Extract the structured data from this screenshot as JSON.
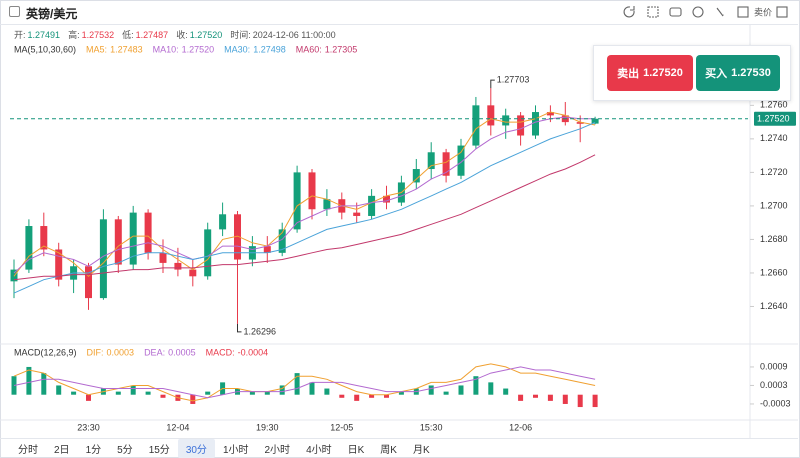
{
  "header": {
    "title": "英镑/美元",
    "tool_text": "卖价",
    "fields": [
      {
        "label": "开:",
        "value": "1.27491",
        "color": "#14937a"
      },
      {
        "label": "高:",
        "value": "1.27532",
        "color": "#e8394a"
      },
      {
        "label": "低:",
        "value": "1.27487",
        "color": "#e8394a"
      },
      {
        "label": "收:",
        "value": "1.27520",
        "color": "#14937a"
      },
      {
        "label": "时间:",
        "value": "2024-12-06 11:00:00",
        "color": "#555555"
      }
    ]
  },
  "trade": {
    "sell": {
      "label": "卖出",
      "price": "1.27520"
    },
    "buy": {
      "label": "买入",
      "price": "1.27530"
    }
  },
  "tabs": [
    "分时",
    "2日",
    "1分",
    "5分",
    "15分",
    "30分",
    "1小时",
    "2小时",
    "4小时",
    "日K",
    "周K",
    "月K"
  ],
  "active_tab": 5,
  "chart_data": [
    {
      "type": "candlestick",
      "legend_title": "MA(5,10,30,60)",
      "categories": [
        null,
        null,
        null,
        null,
        null,
        "23:30",
        null,
        null,
        null,
        null,
        null,
        "12-04",
        null,
        null,
        null,
        null,
        null,
        "19:30",
        null,
        null,
        null,
        null,
        "12-05",
        null,
        null,
        null,
        null,
        null,
        "15:30",
        null,
        null,
        null,
        null,
        null,
        "12-06",
        null,
        null,
        null,
        null,
        null
      ],
      "open": [
        1.2655,
        1.2662,
        1.2688,
        1.2674,
        1.2656,
        1.2664,
        1.2645,
        1.2692,
        1.2665,
        1.2696,
        1.2672,
        1.2666,
        1.2662,
        1.2658,
        1.2686,
        1.2695,
        1.2668,
        1.2676,
        1.2672,
        1.2686,
        1.272,
        1.2698,
        1.2704,
        1.2696,
        1.2694,
        1.2706,
        1.2702,
        1.2714,
        1.2722,
        1.2732,
        1.2718,
        1.2736,
        1.276,
        1.2748,
        1.2754,
        1.2742,
        1.2756,
        1.2754,
        1.275,
        1.27491
      ],
      "high": [
        1.2668,
        1.2692,
        1.2696,
        1.2678,
        1.2668,
        1.2666,
        1.2698,
        1.2694,
        1.27,
        1.2698,
        1.268,
        1.2675,
        1.2668,
        1.269,
        1.2702,
        1.2697,
        1.2682,
        1.2682,
        1.269,
        1.2724,
        1.2722,
        1.271,
        1.2708,
        1.2702,
        1.271,
        1.2712,
        1.2718,
        1.2728,
        1.2738,
        1.2734,
        1.274,
        1.2765,
        1.27703,
        1.2758,
        1.2756,
        1.276,
        1.276,
        1.2762,
        1.2754,
        1.27532
      ],
      "low": [
        1.2645,
        1.266,
        1.267,
        1.2652,
        1.2648,
        1.2638,
        1.2644,
        1.266,
        1.2662,
        1.2668,
        1.266,
        1.2658,
        1.2652,
        1.2656,
        1.2682,
        1.26296,
        1.2664,
        1.2666,
        1.267,
        1.2684,
        1.2692,
        1.2694,
        1.2692,
        1.269,
        1.2692,
        1.2698,
        1.27,
        1.271,
        1.2716,
        1.2714,
        1.2716,
        1.2734,
        1.2742,
        1.274,
        1.2736,
        1.274,
        1.275,
        1.2748,
        1.2738,
        1.27487
      ],
      "close": [
        1.2662,
        1.2688,
        1.2674,
        1.2656,
        1.2664,
        1.2645,
        1.2692,
        1.2665,
        1.2696,
        1.2672,
        1.2666,
        1.2662,
        1.2658,
        1.2686,
        1.2695,
        1.2668,
        1.2676,
        1.2672,
        1.2686,
        1.272,
        1.2698,
        1.2704,
        1.2696,
        1.2694,
        1.2706,
        1.2702,
        1.2714,
        1.2722,
        1.2732,
        1.2718,
        1.2736,
        1.276,
        1.2748,
        1.2754,
        1.2742,
        1.2756,
        1.2754,
        1.275,
        1.2749,
        1.2752
      ],
      "up_color": "#14a07a",
      "down_color": "#e8394a",
      "series": [
        {
          "name": "MA5:",
          "color": "#f0a030",
          "value_label": "1.27483",
          "values": [
            1.2658,
            1.267,
            1.2676,
            1.2672,
            1.2666,
            1.2658,
            1.2666,
            1.2676,
            1.2682,
            1.2682,
            1.2674,
            1.2668,
            1.2662,
            1.2668,
            1.268,
            1.2682,
            1.2678,
            1.2676,
            1.2684,
            1.27,
            1.2706,
            1.2704,
            1.27,
            1.2698,
            1.2702,
            1.2706,
            1.2708,
            1.2716,
            1.2724,
            1.2726,
            1.2732,
            1.2746,
            1.2752,
            1.275,
            1.275,
            1.2752,
            1.2756,
            1.2754,
            1.275,
            1.27483
          ]
        },
        {
          "name": "MA10:",
          "color": "#b36ad0",
          "value_label": "1.27520",
          "values": [
            1.266,
            1.2668,
            1.2672,
            1.267,
            1.2668,
            1.2664,
            1.267,
            1.2674,
            1.2676,
            1.2678,
            1.2676,
            1.2672,
            1.2668,
            1.267,
            1.2676,
            1.2676,
            1.2674,
            1.2676,
            1.268,
            1.269,
            1.2694,
            1.2698,
            1.27,
            1.27,
            1.2702,
            1.2703,
            1.2706,
            1.271,
            1.2716,
            1.272,
            1.2726,
            1.2734,
            1.274,
            1.2744,
            1.2746,
            1.275,
            1.2752,
            1.2753,
            1.2752,
            1.2752
          ]
        },
        {
          "name": "MA30:",
          "color": "#4aa3d9",
          "value_label": "1.27498",
          "values": [
            1.2648,
            1.2652,
            1.2656,
            1.2658,
            1.266,
            1.266,
            1.2664,
            1.2666,
            1.267,
            1.2672,
            1.2672,
            1.267,
            1.2668,
            1.267,
            1.2672,
            1.2672,
            1.2672,
            1.2672,
            1.2674,
            1.2678,
            1.2682,
            1.2686,
            1.2688,
            1.269,
            1.2692,
            1.2695,
            1.2698,
            1.2702,
            1.2706,
            1.271,
            1.2714,
            1.2719,
            1.2724,
            1.2728,
            1.2732,
            1.2736,
            1.274,
            1.2743,
            1.2746,
            1.27498
          ]
        },
        {
          "name": "MA60:",
          "color": "#c2386b",
          "value_label": "1.27305",
          "values": [
            1.2656,
            1.2657,
            1.2658,
            1.2658,
            1.2659,
            1.2659,
            1.266,
            1.2661,
            1.2662,
            1.2662,
            1.2663,
            1.2663,
            1.2663,
            1.2664,
            1.2665,
            1.2665,
            1.2666,
            1.2667,
            1.2668,
            1.267,
            1.2672,
            1.2674,
            1.2675,
            1.2677,
            1.2679,
            1.2681,
            1.2683,
            1.2686,
            1.2689,
            1.2692,
            1.2695,
            1.2699,
            1.2703,
            1.2707,
            1.2711,
            1.2715,
            1.2719,
            1.2722,
            1.2726,
            1.27305
          ]
        }
      ],
      "price_line": {
        "value": 1.2752,
        "label": "1.27520"
      },
      "ylim": [
        1.262,
        1.2796
      ],
      "yticks": [
        {
          "value": 1.264,
          "label": "1.2640"
        },
        {
          "value": 1.266,
          "label": "1.2660"
        },
        {
          "value": 1.268,
          "label": "1.2680"
        },
        {
          "value": 1.27,
          "label": "1.2700"
        },
        {
          "value": 1.272,
          "label": "1.2720"
        },
        {
          "value": 1.274,
          "label": "1.2740"
        },
        {
          "value": 1.276,
          "label": "1.2760"
        }
      ],
      "grid": false
    },
    {
      "type": "macd",
      "legend_title": "MACD(12,26,9)",
      "series": [
        {
          "name": "DIF:",
          "color": "#f0a030",
          "value_label": "0.0003",
          "values": [
            0.0006,
            0.0008,
            0.0007,
            0.0004,
            0.0002,
            0.0,
            0.0001,
            0.0002,
            0.0003,
            0.0003,
            0.0001,
            -0.0001,
            -0.0002,
            -0.0001,
            0.0002,
            0.0002,
            0.0001,
            0.0001,
            0.0002,
            0.0006,
            0.0006,
            0.0005,
            0.0003,
            0.0001,
            0.0,
            0.0,
            0.0001,
            0.0002,
            0.0004,
            0.0004,
            0.0005,
            0.0009,
            0.001,
            0.0009,
            0.0007,
            0.0007,
            0.0006,
            0.0005,
            0.0004,
            0.0003
          ]
        },
        {
          "name": "DEA:",
          "color": "#b36ad0",
          "value_label": "0.0005",
          "values": [
            0.0003,
            0.0004,
            0.0005,
            0.0005,
            0.0004,
            0.0003,
            0.0002,
            0.0002,
            0.0002,
            0.0002,
            0.0002,
            0.0001,
            0.0,
            -0.0001,
            0.0,
            0.0001,
            0.0001,
            0.0001,
            0.0001,
            0.0002,
            0.0004,
            0.0004,
            0.0004,
            0.0003,
            0.0002,
            0.0001,
            0.0001,
            0.0001,
            0.0002,
            0.0003,
            0.0004,
            0.0005,
            0.0007,
            0.0008,
            0.0009,
            0.0008,
            0.0008,
            0.0007,
            0.0006,
            0.0005
          ]
        },
        {
          "name": "MACD:",
          "color": "#e8394a",
          "kind": "bar",
          "value_label": "-0.0004",
          "values": [
            0.0006,
            0.0009,
            0.0007,
            0.0003,
            0.0001,
            -0.0002,
            0.0002,
            0.0001,
            0.0003,
            0.0001,
            -0.0001,
            -0.0002,
            -0.0003,
            0.0001,
            0.0004,
            0.0002,
            0.0001,
            0.0001,
            0.0003,
            0.0007,
            0.0004,
            0.0002,
            -0.0001,
            -0.0002,
            -0.0001,
            -0.0001,
            0.0001,
            0.0002,
            0.0003,
            0.0001,
            0.0003,
            0.0006,
            0.0004,
            0.0002,
            -0.0002,
            -0.0001,
            -0.0002,
            -0.0003,
            -0.0004,
            -0.0004
          ]
        }
      ],
      "up_color": "#14a07a",
      "down_color": "#e8394a",
      "ylim": [
        -0.00082,
        0.00119
      ],
      "yticks": [
        -0.0003,
        0.0003,
        0.0009
      ]
    }
  ]
}
